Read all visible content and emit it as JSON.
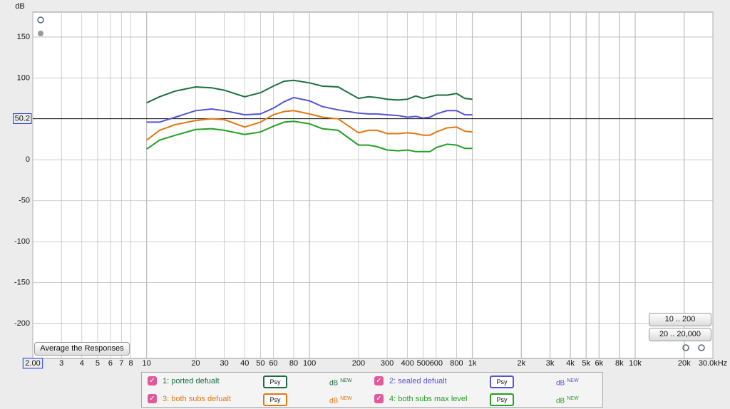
{
  "chart_data": {
    "type": "line",
    "ylabel": "dB",
    "x": [
      10,
      12,
      15,
      20,
      25,
      30,
      40,
      50,
      60,
      70,
      80,
      100,
      120,
      150,
      200,
      230,
      260,
      300,
      350,
      400,
      450,
      500,
      550,
      600,
      700,
      800,
      900,
      1000
    ],
    "series": [
      {
        "name": "1: ported defualt",
        "color": "#1b6e3e",
        "values": [
          69.6,
          77,
          84,
          89,
          88,
          85,
          77,
          82,
          90,
          96,
          97,
          94,
          90,
          89,
          75,
          77,
          76,
          74,
          73,
          74,
          78,
          75,
          77,
          79,
          79,
          81,
          75,
          74
        ]
      },
      {
        "name": "2: sealed defualt",
        "color": "#5454d4",
        "values": [
          46,
          46,
          52,
          60,
          62,
          60,
          55,
          56,
          63,
          71,
          76,
          72,
          65,
          61,
          57,
          56,
          56,
          55,
          54,
          52,
          53,
          51,
          52,
          56,
          60,
          60,
          55,
          55
        ]
      },
      {
        "name": "3: both subs defualt",
        "color": "#e27812",
        "values": [
          24,
          36,
          43,
          48,
          50,
          49,
          40,
          46,
          55,
          59,
          60,
          56,
          52,
          50,
          33,
          36,
          36,
          32,
          32,
          33,
          32,
          30,
          30,
          34,
          39,
          40,
          35,
          34
        ]
      },
      {
        "name": "4: both subs max level",
        "color": "#22a022",
        "values": [
          13,
          24,
          30,
          37,
          38,
          36,
          31,
          34,
          41,
          46,
          47,
          44,
          38,
          36,
          18,
          18,
          16,
          12,
          11,
          12,
          10,
          10,
          10,
          15,
          19,
          18,
          14,
          14
        ]
      }
    ],
    "xscale": "log",
    "xlim": [
      2,
      30000
    ],
    "xticks": [
      {
        "value": 2,
        "label": "2.00"
      },
      3,
      4,
      5,
      6,
      7,
      8,
      10,
      20,
      30,
      40,
      50,
      60,
      80,
      100,
      200,
      300,
      400,
      500,
      600,
      800,
      {
        "value": 1000,
        "label": "1k"
      },
      {
        "value": 2000,
        "label": "2k"
      },
      {
        "value": 3000,
        "label": "3k"
      },
      {
        "value": 4000,
        "label": "4k"
      },
      {
        "value": 5000,
        "label": "5k"
      },
      {
        "value": 6000,
        "label": "6k"
      },
      {
        "value": 8000,
        "label": "8k"
      },
      {
        "value": 10000,
        "label": "10k"
      },
      {
        "value": 20000,
        "label": "20k"
      },
      {
        "value": 30000,
        "label": "30.0kHz"
      }
    ],
    "ylim": [
      -242.6,
      180.4
    ],
    "yticks": [
      150,
      100,
      0,
      -50,
      -100,
      -150,
      -200
    ],
    "cursor": 50.2,
    "grid": true
  },
  "controls": {
    "average": "Average the Responses",
    "range_low": "10 .. 200",
    "range_full": "20 .. 20,000"
  },
  "legend": {
    "button": "Psy",
    "unit": "dB",
    "badge": "NEW"
  }
}
